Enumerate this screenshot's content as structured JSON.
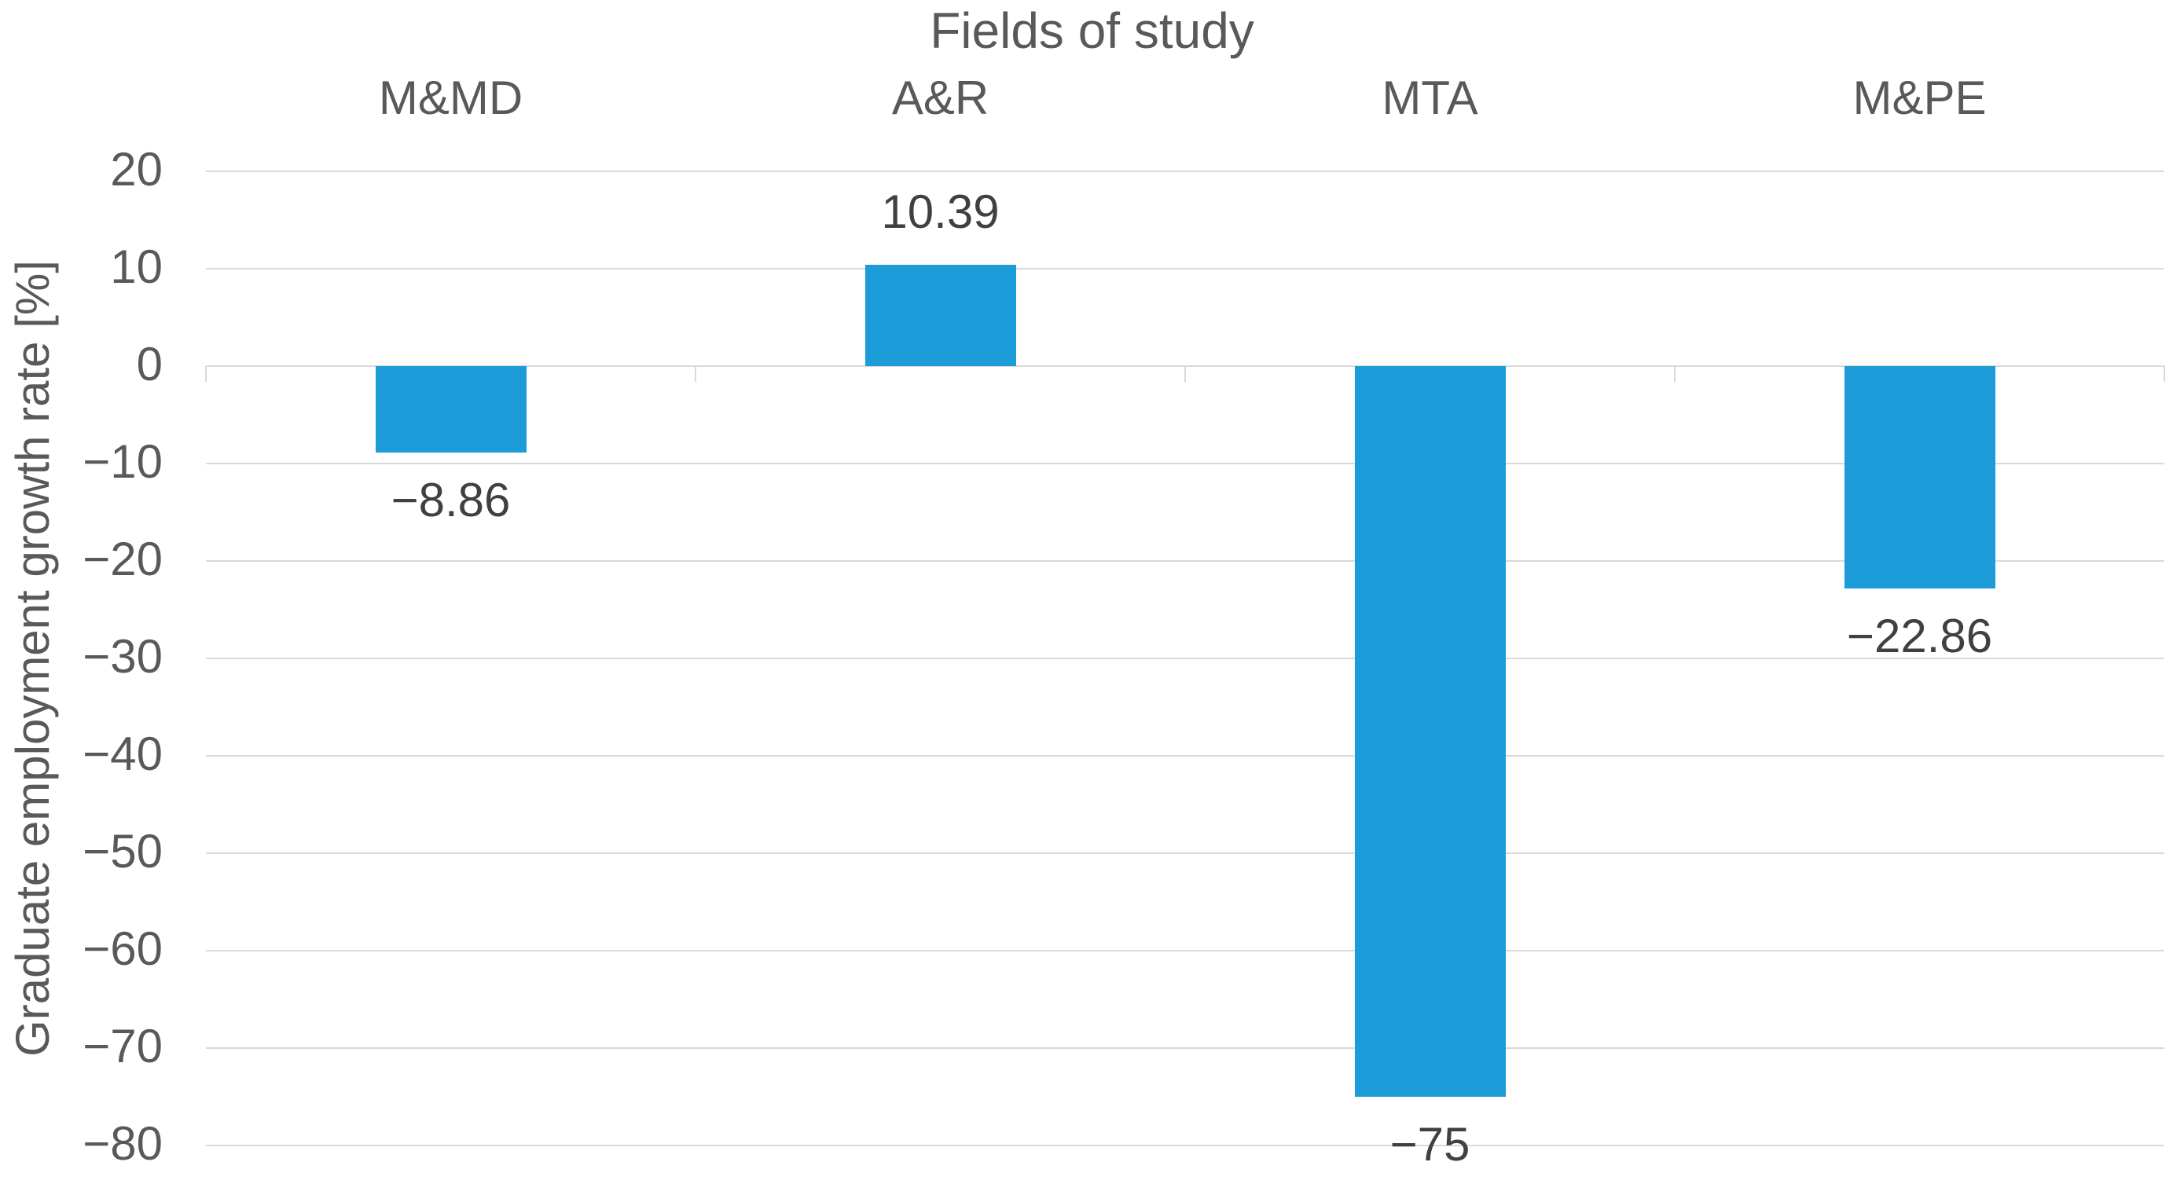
{
  "chart_data": {
    "type": "bar",
    "title": "Fields of study",
    "ylabel": "Graduate employment growth rate [%]",
    "categories": [
      "M&MD",
      "A&R",
      "MTA",
      "M&PE"
    ],
    "values": [
      -8.86,
      10.39,
      -75,
      -22.86
    ],
    "data_labels": [
      "−8.86",
      "10.39",
      "−75",
      "−22.86"
    ],
    "y_ticks": [
      20,
      10,
      0,
      -10,
      -20,
      -30,
      -40,
      -50,
      -60,
      -70,
      -80
    ],
    "y_tick_labels": [
      "20",
      "10",
      "0",
      "−10",
      "−20",
      "−30",
      "−40",
      "−50",
      "−60",
      "−70",
      "−80"
    ],
    "ylim": [
      -80,
      20
    ],
    "grid": true,
    "legend": "none",
    "bar_color": "#1B9CD8",
    "gridline_color": "#D9D9D9",
    "axis_text_color": "#595959",
    "data_label_color": "#404040",
    "title_color": "#595959",
    "background_color": "#FFFFFF"
  }
}
